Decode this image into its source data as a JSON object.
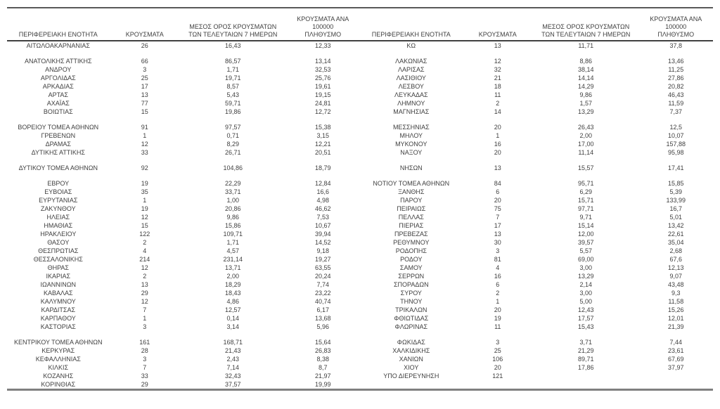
{
  "colors": {
    "text": "#3f3f3f",
    "header_rule": "#404040",
    "top_rule": "#595959",
    "bottom_rule": "#808080"
  },
  "table": {
    "headers": {
      "region": "ΠΕΡΙΦΕΡΕΙΑΚΗ ΕΝΟΤΗΤΑ",
      "cases": "ΚΡΟΥΣΜΑΤΑ",
      "avg7": "ΜΕΣΟΣ ΟΡΟΣ ΚΡΟΥΣΜΑΤΩΝ\nΤΩΝ ΤΕΛΕΥΤΑΙΩΝ 7 ΗΜΕΡΩΝ",
      "per100k": "ΚΡΟΥΣΜΑΤΑ ΑΝΑ 100000\nΠΛΗΘΥΣΜΟ"
    },
    "left_rows": [
      [
        "ΑΙΤΩΛΟΑΚΑΡΝΑΝΙΑΣ",
        "26",
        "16,43",
        "12,33"
      ],
      null,
      [
        "ΑΝΑΤΟΛΙΚΗΣ ΑΤΤΙΚΗΣ",
        "66",
        "86,57",
        "13,14"
      ],
      [
        "ΑΝΔΡΟΥ",
        "3",
        "1,71",
        "32,53"
      ],
      [
        "ΑΡΓΟΛΙΔΑΣ",
        "25",
        "19,71",
        "25,76"
      ],
      [
        "ΑΡΚΑΔΙΑΣ",
        "17",
        "8,57",
        "19,61"
      ],
      [
        "ΑΡΤΑΣ",
        "13",
        "5,43",
        "19,15"
      ],
      [
        "ΑΧΑΪΑΣ",
        "77",
        "59,71",
        "24,81"
      ],
      [
        "ΒΟΙΩΤΙΑΣ",
        "15",
        "19,86",
        "12,72"
      ],
      null,
      [
        "ΒΟΡΕΙΟΥ ΤΟΜΕΑ ΑΘΗΝΩΝ",
        "91",
        "97,57",
        "15,38"
      ],
      [
        "ΓΡΕΒΕΝΩΝ",
        "1",
        "0,71",
        "3,15"
      ],
      [
        "ΔΡΑΜΑΣ",
        "12",
        "8,29",
        "12,21"
      ],
      [
        "ΔΥΤΙΚΗΣ ΑΤΤΙΚΗΣ",
        "33",
        "26,71",
        "20,51"
      ],
      null,
      [
        "ΔΥΤΙΚΟΥ ΤΟΜΕΑ ΑΘΗΝΩΝ",
        "92",
        "104,86",
        "18,79"
      ],
      null,
      [
        "ΕΒΡΟΥ",
        "19",
        "22,29",
        "12,84"
      ],
      [
        "ΕΥΒΟΙΑΣ",
        "35",
        "33,71",
        "16,6"
      ],
      [
        "ΕΥΡΥΤΑΝΙΑΣ",
        "1",
        "1,00",
        "4,98"
      ],
      [
        "ΖΑΚΥΝΘΟΥ",
        "19",
        "20,86",
        "46,62"
      ],
      [
        "ΗΛΕΙΑΣ",
        "12",
        "9,86",
        "7,53"
      ],
      [
        "ΗΜΑΘΙΑΣ",
        "15",
        "15,86",
        "10,67"
      ],
      [
        "ΗΡΑΚΛΕΙΟΥ",
        "122",
        "109,71",
        "39,94"
      ],
      [
        "ΘΑΣΟΥ",
        "2",
        "1,71",
        "14,52"
      ],
      [
        "ΘΕΣΠΡΩΤΙΑΣ",
        "4",
        "4,57",
        "9,18"
      ],
      [
        "ΘΕΣΣΑΛΟΝΙΚΗΣ",
        "214",
        "231,14",
        "19,27"
      ],
      [
        "ΘΗΡΑΣ",
        "12",
        "13,71",
        "63,55"
      ],
      [
        "ΙΚΑΡΙΑΣ",
        "2",
        "2,00",
        "20,24"
      ],
      [
        "ΙΩΑΝΝΙΝΩΝ",
        "13",
        "18,29",
        "7,74"
      ],
      [
        "ΚΑΒΑΛΑΣ",
        "29",
        "18,43",
        "23,22"
      ],
      [
        "ΚΑΛΥΜΝΟΥ",
        "12",
        "4,86",
        "40,74"
      ],
      [
        "ΚΑΡΔΙΤΣΑΣ",
        "7",
        "12,57",
        "6,17"
      ],
      [
        "ΚΑΡΠΑΘΟΥ",
        "1",
        "0,14",
        "13,68"
      ],
      [
        "ΚΑΣΤΟΡΙΑΣ",
        "3",
        "3,14",
        "5,96"
      ],
      null,
      [
        "ΚΕΝΤΡΙΚΟΥ ΤΟΜΕΑ ΑΘΗΝΩΝ",
        "161",
        "168,71",
        "15,64"
      ],
      [
        "ΚΕΡΚΥΡΑΣ",
        "28",
        "21,43",
        "26,83"
      ],
      [
        "ΚΕΦΑΛΛΗΝΙΑΣ",
        "3",
        "2,43",
        "8,38"
      ],
      [
        "ΚΙΛΚΙΣ",
        "7",
        "7,14",
        "8,7"
      ],
      [
        "ΚΟΖΑΝΗΣ",
        "33",
        "32,43",
        "21,97"
      ],
      [
        "ΚΟΡΙΝΘΙΑΣ",
        "29",
        "37,57",
        "19,99"
      ]
    ],
    "right_rows": [
      [
        "ΚΩ",
        "13",
        "11,71",
        "37,8"
      ],
      null,
      [
        "ΛΑΚΩΝΙΑΣ",
        "12",
        "8,86",
        "13,46"
      ],
      [
        "ΛΑΡΙΣΑΣ",
        "32",
        "38,14",
        "11,25"
      ],
      [
        "ΛΑΣΙΘΙΟΥ",
        "21",
        "14,14",
        "27,86"
      ],
      [
        "ΛΕΣΒΟΥ",
        "18",
        "14,29",
        "20,82"
      ],
      [
        "ΛΕΥΚΑΔΑΣ",
        "11",
        "9,86",
        "46,43"
      ],
      [
        "ΛΗΜΝΟΥ",
        "2",
        "1,57",
        "11,59"
      ],
      [
        "ΜΑΓΝΗΣΙΑΣ",
        "14",
        "13,29",
        "7,37"
      ],
      null,
      [
        "ΜΕΣΣΗΝΙΑΣ",
        "20",
        "26,43",
        "12,5"
      ],
      [
        "ΜΗΛΟΥ",
        "1",
        "2,00",
        "10,07"
      ],
      [
        "ΜΥΚΟΝΟΥ",
        "16",
        "17,00",
        "157,88"
      ],
      [
        "ΝΑΞΟΥ",
        "20",
        "11,14",
        "95,98"
      ],
      null,
      [
        "ΝΗΣΩΝ",
        "13",
        "15,57",
        "17,41"
      ],
      null,
      [
        "ΝΟΤΙΟΥ ΤΟΜΕΑ ΑΘΗΝΩΝ",
        "84",
        "95,71",
        "15,85"
      ],
      [
        "ΞΑΝΘΗΣ",
        "6",
        "6,29",
        "5,39"
      ],
      [
        "ΠΑΡΟΥ",
        "20",
        "15,71",
        "133,99"
      ],
      [
        "ΠΕΙΡΑΙΩΣ",
        "75",
        "97,71",
        "16,7"
      ],
      [
        "ΠΕΛΛΑΣ",
        "7",
        "9,71",
        "5,01"
      ],
      [
        "ΠΙΕΡΙΑΣ",
        "17",
        "15,14",
        "13,42"
      ],
      [
        "ΠΡΕΒΕΖΑΣ",
        "13",
        "12,00",
        "22,61"
      ],
      [
        "ΡΕΘΥΜΝΟΥ",
        "30",
        "39,57",
        "35,04"
      ],
      [
        "ΡΟΔΟΠΗΣ",
        "3",
        "5,57",
        "2,68"
      ],
      [
        "ΡΟΔΟΥ",
        "81",
        "69,00",
        "67,6"
      ],
      [
        "ΣΑΜΟΥ",
        "4",
        "3,00",
        "12,13"
      ],
      [
        "ΣΕΡΡΩΝ",
        "16",
        "13,29",
        "9,07"
      ],
      [
        "ΣΠΟΡΑΔΩΝ",
        "6",
        "2,14",
        "43,48"
      ],
      [
        "ΣΥΡΟΥ",
        "2",
        "3,00",
        "9,3"
      ],
      [
        "ΤΗΝΟΥ",
        "1",
        "5,00",
        "11,58"
      ],
      [
        "ΤΡΙΚΑΛΩΝ",
        "20",
        "12,43",
        "15,26"
      ],
      [
        "ΦΘΙΩΤΙΔΑΣ",
        "19",
        "17,57",
        "12,01"
      ],
      [
        "ΦΛΩΡΙΝΑΣ",
        "11",
        "15,43",
        "21,39"
      ],
      null,
      [
        "ΦΩΚΙΔΑΣ",
        "3",
        "3,71",
        "7,44"
      ],
      [
        "ΧΑΛΚΙΔΙΚΗΣ",
        "25",
        "21,29",
        "23,61"
      ],
      [
        "ΧΑΝΙΩΝ",
        "106",
        "89,71",
        "67,69"
      ],
      [
        "ΧΙΟΥ",
        "20",
        "17,86",
        "37,97"
      ],
      [
        "ΥΠΟ ΔΙΕΡΕΥΝΗΣΗ",
        "121",
        "",
        ""
      ]
    ]
  }
}
